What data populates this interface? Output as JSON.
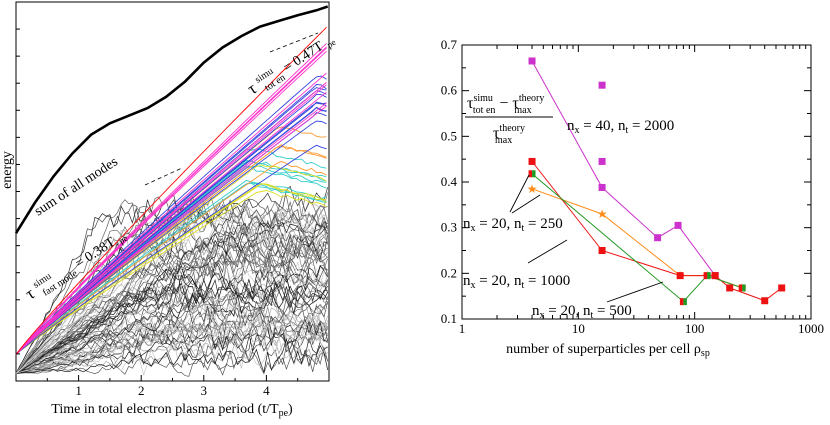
{
  "chart_data": [
    {
      "type": "line",
      "xlabel_main": "Time in total electron plasma period (t/T",
      "xlabel_sub": "pe",
      "xlabel_close": ")",
      "ylabel": "energy",
      "xticks": [
        "1",
        "2",
        "3",
        "4"
      ],
      "xlim": [
        0,
        5.0
      ],
      "annotations": {
        "sum_label": "sum of all modes",
        "tot_tau": "τ",
        "tot_sup": "simu",
        "tot_sub": "tot en",
        "tot_value": " = 0.47T",
        "tot_value_sub": "pe",
        "fast_tau": "τ",
        "fast_sup": "simu",
        "fast_sub": "fast mode",
        "fast_value": " = 0.38T",
        "fast_value_sub": "pe"
      },
      "sum_curve": {
        "x": [
          0.0,
          0.3,
          0.6,
          0.9,
          1.2,
          1.5,
          1.8,
          2.1,
          2.4,
          2.7,
          3.0,
          3.3,
          3.6,
          3.9,
          4.2,
          4.5,
          4.8,
          4.98
        ],
        "y": [
          0.39,
          0.47,
          0.54,
          0.6,
          0.65,
          0.68,
          0.7,
          0.72,
          0.75,
          0.79,
          0.84,
          0.88,
          0.91,
          0.935,
          0.95,
          0.965,
          0.978,
          0.988
        ]
      },
      "colors": {
        "sum": "#000000",
        "top": "#ff0000",
        "magenta": "#ff33cc",
        "blue": "#3344dd",
        "cyan": "#33cccc",
        "yellow": "#dddd22",
        "orange": "#ff9933",
        "gray_dark": "#222222",
        "gray_light": "#cccccc"
      }
    },
    {
      "type": "scatter",
      "xlabel": "number of superparticles per cell ρ",
      "xlabel_sub": "sp",
      "xscale": "log",
      "xlim": [
        1,
        1000
      ],
      "ylim": [
        0.1,
        0.7
      ],
      "xticks": [
        "1",
        "10",
        "100",
        "1000"
      ],
      "yticks": [
        "0.1",
        "0.2",
        "0.3",
        "0.4",
        "0.5",
        "0.6",
        "0.7"
      ],
      "ylabel_num_a": "τ",
      "ylabel_num_a_sup": "simu",
      "ylabel_num_a_sub": "tot en",
      "ylabel_minus": " − τ",
      "ylabel_num_b_sup": "theory",
      "ylabel_num_b_sub": "max",
      "ylabel_den": "τ",
      "ylabel_den_sup": "theory",
      "ylabel_den_sub": "max",
      "series": [
        {
          "name_a": "n",
          "name_a_sub": "x",
          "name_b": " = 40, n",
          "name_b_sub": "t",
          "name_c": " = 2000",
          "color": "#cc33cc",
          "marker": "square",
          "line": {
            "x": [
              4,
              16,
              48,
              72,
              150
            ],
            "y": [
              0.665,
              0.388,
              0.278,
              0.305,
              0.195
            ]
          },
          "points": {
            "x": [
              4,
              16,
              16,
              16,
              48,
              72,
              150
            ],
            "y": [
              0.665,
              0.612,
              0.445,
              0.388,
              0.278,
              0.305,
              0.195
            ]
          }
        },
        {
          "name_a": "n",
          "name_a_sub": "x",
          "name_b": " = 20, n",
          "name_b_sub": "t",
          "name_c": " = 250",
          "color": "#ff8c1a",
          "marker": "star",
          "points": {
            "x": [
              4,
              16,
              75,
              128,
              256
            ],
            "y": [
              0.385,
              0.33,
              0.195,
              0.195,
              0.168
            ]
          }
        },
        {
          "name_a": "n",
          "name_a_sub": "x",
          "name_b": " = 20, n",
          "name_b_sub": "t",
          "name_c": " = 1000",
          "color": "#ee1111",
          "marker": "square",
          "points": {
            "x": [
              4,
              16,
              75,
              150,
              200,
              400,
              560
            ],
            "y": [
              0.445,
              0.25,
              0.195,
              0.195,
              0.168,
              0.14,
              0.168
            ]
          }
        },
        {
          "name_a": "n",
          "name_a_sub": "x",
          "name_b": " = 20, n",
          "name_b_sub": "t",
          "name_c": " = 500",
          "color": "#229922",
          "marker": "half-square",
          "points": {
            "x": [
              4,
              80,
              128,
              256
            ],
            "y": [
              0.418,
              0.138,
              0.195,
              0.168
            ]
          }
        }
      ]
    }
  ]
}
